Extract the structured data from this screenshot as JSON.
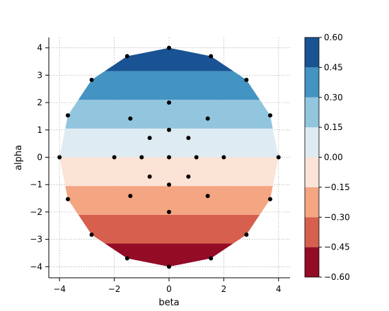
{
  "chart_data": {
    "type": "contourf",
    "xlabel": "beta",
    "ylabel": "alpha",
    "xlim": [
      -4.4,
      4.4
    ],
    "ylim": [
      -4.4,
      4.4
    ],
    "xticks": [
      -4,
      -2,
      0,
      2,
      4
    ],
    "yticks": [
      -4,
      -3,
      -2,
      -1,
      0,
      1,
      2,
      3,
      4
    ],
    "xtick_labels": [
      "−4",
      "−2",
      "0",
      "2",
      "4"
    ],
    "ytick_labels": [
      "−4",
      "−3",
      "−2",
      "−1",
      "0",
      "1",
      "2",
      "3",
      "4"
    ],
    "grid": true,
    "domain_boundary": [
      [
        4,
        0
      ],
      [
        3.696,
        1.531
      ],
      [
        2.828,
        2.828
      ],
      [
        1.531,
        3.696
      ],
      [
        0,
        4
      ],
      [
        -1.531,
        3.696
      ],
      [
        -2.828,
        2.828
      ],
      [
        -3.696,
        1.531
      ],
      [
        -4,
        0
      ],
      [
        -3.696,
        -1.531
      ],
      [
        -2.828,
        -2.828
      ],
      [
        -1.531,
        -3.696
      ],
      [
        0,
        -4
      ],
      [
        1.531,
        -3.696
      ],
      [
        2.828,
        -2.828
      ],
      [
        3.696,
        -1.531
      ]
    ],
    "bands": [
      {
        "alpha_range": [
          -4.0,
          -3.15
        ],
        "level_range": [
          -0.6,
          -0.45
        ],
        "color": "#940b26"
      },
      {
        "alpha_range": [
          -3.15,
          -2.1
        ],
        "level_range": [
          -0.45,
          -0.3
        ],
        "color": "#d6604d"
      },
      {
        "alpha_range": [
          -2.1,
          -1.05
        ],
        "level_range": [
          -0.3,
          -0.15
        ],
        "color": "#f4a582"
      },
      {
        "alpha_range": [
          -1.05,
          0.0
        ],
        "level_range": [
          -0.15,
          0.0
        ],
        "color": "#fbe3d6"
      },
      {
        "alpha_range": [
          0.0,
          1.05
        ],
        "level_range": [
          0.0,
          0.15
        ],
        "color": "#deebf2"
      },
      {
        "alpha_range": [
          1.05,
          2.1
        ],
        "level_range": [
          0.15,
          0.3
        ],
        "color": "#92c5de"
      },
      {
        "alpha_range": [
          2.1,
          3.15
        ],
        "level_range": [
          0.3,
          0.45
        ],
        "color": "#4393c3"
      },
      {
        "alpha_range": [
          3.15,
          4.0
        ],
        "level_range": [
          0.45,
          0.6
        ],
        "color": "#1a5393"
      }
    ],
    "points": [
      [
        0,
        0
      ],
      [
        1,
        0
      ],
      [
        0.707,
        0.707
      ],
      [
        0,
        1
      ],
      [
        -0.707,
        0.707
      ],
      [
        -1,
        0
      ],
      [
        -0.707,
        -0.707
      ],
      [
        0,
        -1
      ],
      [
        0.707,
        -0.707
      ],
      [
        2,
        0
      ],
      [
        1.414,
        1.414
      ],
      [
        0,
        2
      ],
      [
        -1.414,
        1.414
      ],
      [
        -2,
        0
      ],
      [
        -1.414,
        -1.414
      ],
      [
        0,
        -2
      ],
      [
        1.414,
        -1.414
      ],
      [
        4,
        0
      ],
      [
        3.696,
        1.531
      ],
      [
        2.828,
        2.828
      ],
      [
        1.531,
        3.696
      ],
      [
        0,
        4
      ],
      [
        -1.531,
        3.696
      ],
      [
        -2.828,
        2.828
      ],
      [
        -3.696,
        1.531
      ],
      [
        -4,
        0
      ],
      [
        -3.696,
        -1.531
      ],
      [
        -2.828,
        -2.828
      ],
      [
        -1.531,
        -3.696
      ],
      [
        0,
        -4
      ],
      [
        1.531,
        -3.696
      ],
      [
        2.828,
        -2.828
      ],
      [
        3.696,
        -1.531
      ]
    ],
    "colorbar": {
      "ticks": [
        0.6,
        0.45,
        0.3,
        0.15,
        0.0,
        -0.15,
        -0.3,
        -0.45,
        -0.6
      ],
      "tick_labels": [
        "0.60",
        "0.45",
        "0.30",
        "0.15",
        "0.00",
        "−0.15",
        "−0.30",
        "−0.45",
        "−0.60"
      ]
    }
  }
}
